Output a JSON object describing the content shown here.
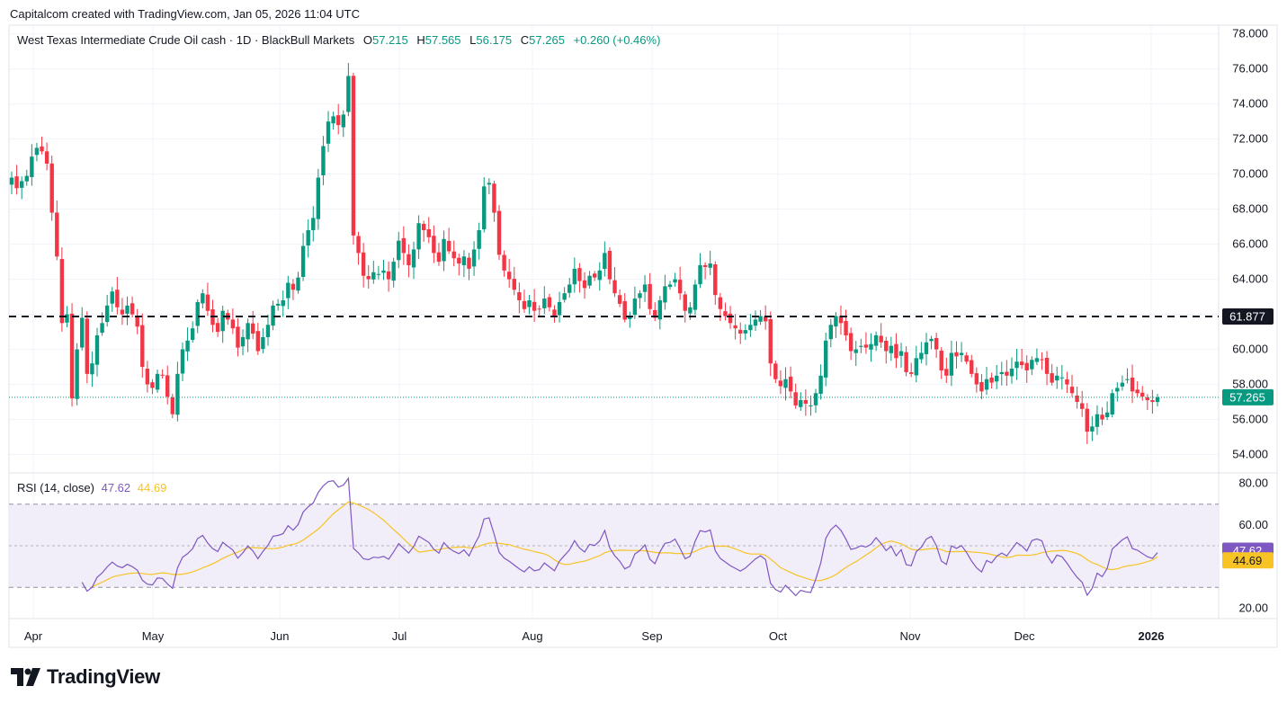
{
  "attribution": "Capitalcom created with TradingView.com, Jan 05, 2026 11:04 UTC",
  "legend": {
    "symbol": "West Texas Intermediate Crude Oil cash · 1D · BlackBull Markets",
    "o_label": "O",
    "o": "57.215",
    "h_label": "H",
    "h": "57.565",
    "l_label": "L",
    "l": "56.175",
    "c_label": "C",
    "c": "57.265",
    "change": "+0.260 (+0.46%)"
  },
  "rsi_legend": {
    "label": "RSI (14, close)",
    "rsi": "47.62",
    "ma": "44.69"
  },
  "brand": "TradingView",
  "colors": {
    "up": "#089981",
    "down": "#f23645",
    "rsi": "#7e57c2",
    "rsi_ma": "#f7c325",
    "band": "#ede7f6",
    "level_line": "#131722"
  },
  "chart_data": [
    {
      "type": "candlestick",
      "price_ticks": [
        "78.000",
        "76.000",
        "74.000",
        "72.000",
        "70.000",
        "68.000",
        "66.000",
        "64.000",
        "62.000",
        "60.000",
        "58.000",
        "56.000",
        "54.000"
      ],
      "ylim": [
        53,
        78.5
      ],
      "x_labels": [
        "Apr",
        "May",
        "Jun",
        "Jul",
        "Aug",
        "Sep",
        "Oct",
        "Nov",
        "Dec",
        "2026"
      ],
      "horizontal_level": {
        "value": 61.877,
        "label": "61.877"
      },
      "last_price": {
        "value": 57.265,
        "label": "57.265"
      },
      "closes": [
        69.8,
        69.2,
        69.6,
        69.9,
        71.0,
        71.5,
        71.3,
        70.6,
        67.8,
        65.3,
        61.5,
        62.0,
        57.2,
        60.0,
        61.8,
        58.6,
        59.2,
        60.8,
        61.5,
        62.5,
        63.3,
        62.4,
        62.0,
        62.5,
        62.0,
        61.3,
        59.0,
        58.0,
        57.8,
        58.6,
        58.5,
        57.3,
        56.3,
        58.6,
        60.0,
        60.5,
        61.2,
        62.7,
        63.2,
        62.2,
        61.4,
        61.0,
        62.2,
        61.7,
        61.2,
        60.1,
        60.7,
        61.5,
        60.9,
        59.9,
        60.7,
        61.4,
        62.5,
        62.6,
        62.8,
        63.8,
        63.4,
        64.1,
        65.9,
        66.8,
        67.5,
        69.8,
        71.6,
        73.0,
        73.3,
        72.8,
        73.4,
        75.6,
        66.5,
        65.5,
        64.2,
        64.0,
        64.4,
        64.3,
        64.5,
        64.0,
        65.0,
        66.2,
        65.5,
        64.8,
        65.7,
        67.2,
        66.8,
        66.4,
        65.5,
        65.0,
        66.3,
        65.6,
        65.2,
        64.9,
        65.3,
        64.6,
        65.7,
        66.8,
        69.3,
        69.5,
        67.8,
        65.4,
        64.5,
        64.0,
        63.4,
        62.8,
        62.3,
        62.8,
        62.2,
        62.3,
        62.9,
        62.4,
        61.9,
        62.7,
        63.2,
        63.7,
        64.6,
        63.9,
        63.5,
        64.2,
        64.1,
        64.5,
        65.5,
        64.0,
        63.2,
        62.6,
        61.7,
        61.9,
        62.9,
        63.2,
        63.7,
        62.3,
        61.8,
        62.8,
        63.6,
        63.7,
        64.0,
        63.2,
        62.2,
        62.4,
        63.7,
        64.8,
        64.7,
        64.9,
        63.1,
        62.3,
        61.9,
        61.5,
        61.2,
        60.9,
        61.1,
        61.4,
        61.7,
        61.9,
        61.6,
        59.2,
        58.3,
        57.9,
        58.3,
        57.6,
        56.8,
        57.1,
        56.9,
        56.8,
        57.5,
        58.5,
        60.5,
        61.4,
        61.9,
        61.5,
        60.8,
        59.9,
        60.0,
        60.2,
        60.1,
        60.3,
        60.8,
        60.4,
        59.9,
        60.2,
        59.5,
        59.9,
        58.7,
        58.6,
        59.5,
        59.8,
        60.4,
        60.6,
        60.0,
        58.8,
        58.5,
        59.8,
        59.6,
        59.8,
        59.3,
        58.6,
        58.0,
        57.6,
        58.3,
        58.1,
        58.5,
        58.7,
        58.5,
        58.9,
        59.3,
        59.1,
        58.8,
        59.4,
        59.5,
        59.4,
        58.6,
        58.1,
        58.5,
        58.4,
        58.0,
        57.5,
        57.0,
        56.6,
        55.3,
        55.6,
        56.3,
        56.0,
        56.4,
        57.5,
        57.8,
        58.1,
        58.3,
        57.6,
        57.5,
        57.3,
        57.1,
        57.0,
        57.265
      ],
      "rsi": {
        "ylim": [
          15,
          85
        ],
        "ticks": [
          "80.00",
          "60.00",
          "20.00"
        ],
        "levels": [
          30,
          50,
          70
        ],
        "last_rsi": 47.62,
        "last_ma": 44.69
      }
    }
  ]
}
